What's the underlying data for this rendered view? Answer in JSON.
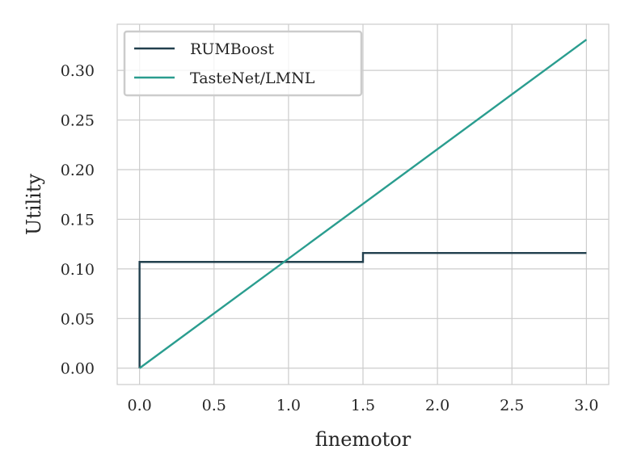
{
  "chart_data": {
    "type": "line",
    "xlabel": "finemotor",
    "ylabel": "Utility",
    "xlim": [
      -0.15,
      3.15
    ],
    "ylim": [
      -0.0165,
      0.3465
    ],
    "x_ticks": [
      0.0,
      0.5,
      1.0,
      1.5,
      2.0,
      2.5,
      3.0
    ],
    "x_tick_labels": [
      "0.0",
      "0.5",
      "1.0",
      "1.5",
      "2.0",
      "2.5",
      "3.0"
    ],
    "y_ticks": [
      0.0,
      0.05,
      0.1,
      0.15,
      0.2,
      0.25,
      0.3
    ],
    "y_tick_labels": [
      "0.00",
      "0.05",
      "0.10",
      "0.15",
      "0.20",
      "0.25",
      "0.30"
    ],
    "grid": true,
    "legend_position": "top-left",
    "series": [
      {
        "name": "RUMBoost",
        "color": "#22404e",
        "step": true,
        "x": [
          0.0,
          0.0,
          1.5,
          1.5,
          3.0
        ],
        "y": [
          0.0,
          0.107,
          0.107,
          0.116,
          0.116
        ]
      },
      {
        "name": "TasteNet/LMNL",
        "color": "#2a9d8f",
        "step": false,
        "x": [
          0.0,
          3.0
        ],
        "y": [
          0.0,
          0.331
        ]
      }
    ]
  }
}
